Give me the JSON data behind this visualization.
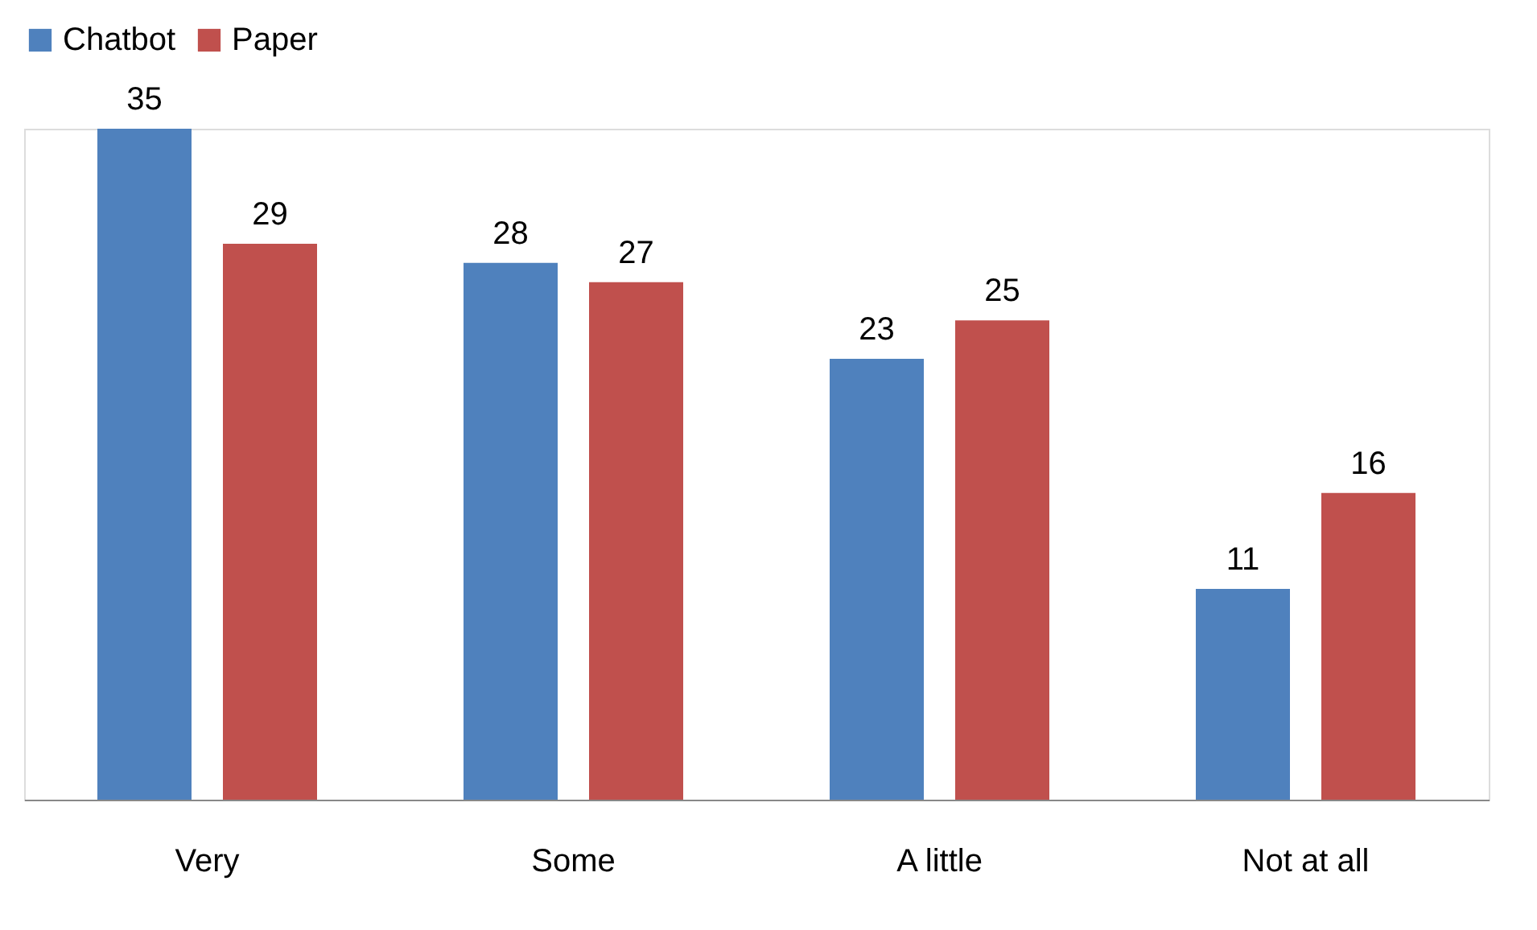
{
  "chart_data": {
    "type": "bar",
    "categories": [
      "Very",
      "Some",
      "A little",
      "Not at all"
    ],
    "series": [
      {
        "name": "Chatbot",
        "color": "#4f81bd",
        "values": [
          35,
          28,
          23,
          11
        ]
      },
      {
        "name": "Paper",
        "color": "#c0504d",
        "values": [
          29,
          27,
          25,
          16
        ]
      }
    ],
    "data_labels": true,
    "legend": "top",
    "grid": false
  }
}
